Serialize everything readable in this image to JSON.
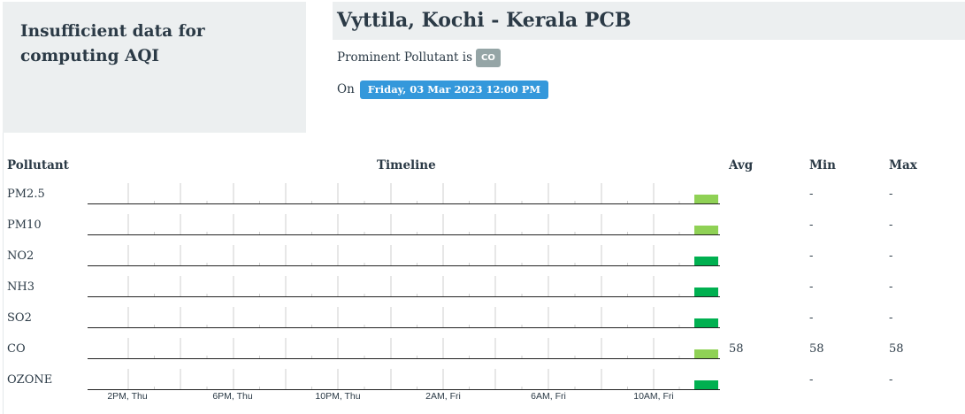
{
  "aqi_panel": {
    "message": "Insufficient data for computing AQI"
  },
  "station": {
    "name": "Vyttila, Kochi - Kerala PCB"
  },
  "prominent": {
    "label": "Prominent Pollutant is",
    "pollutant": "CO",
    "badge_color": "#95a5a6"
  },
  "timestamp": {
    "prefix": "On",
    "value": "Friday, 03 Mar 2023 12:00 PM",
    "badge_color": "#3498db"
  },
  "table": {
    "headers": {
      "pollutant": "Pollutant",
      "timeline": "Timeline",
      "avg": "Avg",
      "min": "Min",
      "max": "Max"
    },
    "rows": [
      {
        "name": "PM2.5",
        "avg": "",
        "min": "-",
        "max": "-",
        "bar_color": "#8fd155"
      },
      {
        "name": "PM10",
        "avg": "",
        "min": "-",
        "max": "-",
        "bar_color": "#8fd155"
      },
      {
        "name": "NO2",
        "avg": "",
        "min": "-",
        "max": "-",
        "bar_color": "#00b050"
      },
      {
        "name": "NH3",
        "avg": "",
        "min": "-",
        "max": "-",
        "bar_color": "#00b050"
      },
      {
        "name": "SO2",
        "avg": "",
        "min": "-",
        "max": "-",
        "bar_color": "#00b050"
      },
      {
        "name": "CO",
        "avg": "58",
        "min": "58",
        "max": "58",
        "bar_color": "#8fd155"
      },
      {
        "name": "OZONE",
        "avg": "",
        "min": "-",
        "max": "-",
        "bar_color": "#00b050"
      }
    ],
    "timeline_axis": [
      "2PM, Thu",
      "6PM, Thu",
      "10PM, Thu",
      "2AM, Fri",
      "6AM, Fri",
      "10AM, Fri"
    ]
  }
}
